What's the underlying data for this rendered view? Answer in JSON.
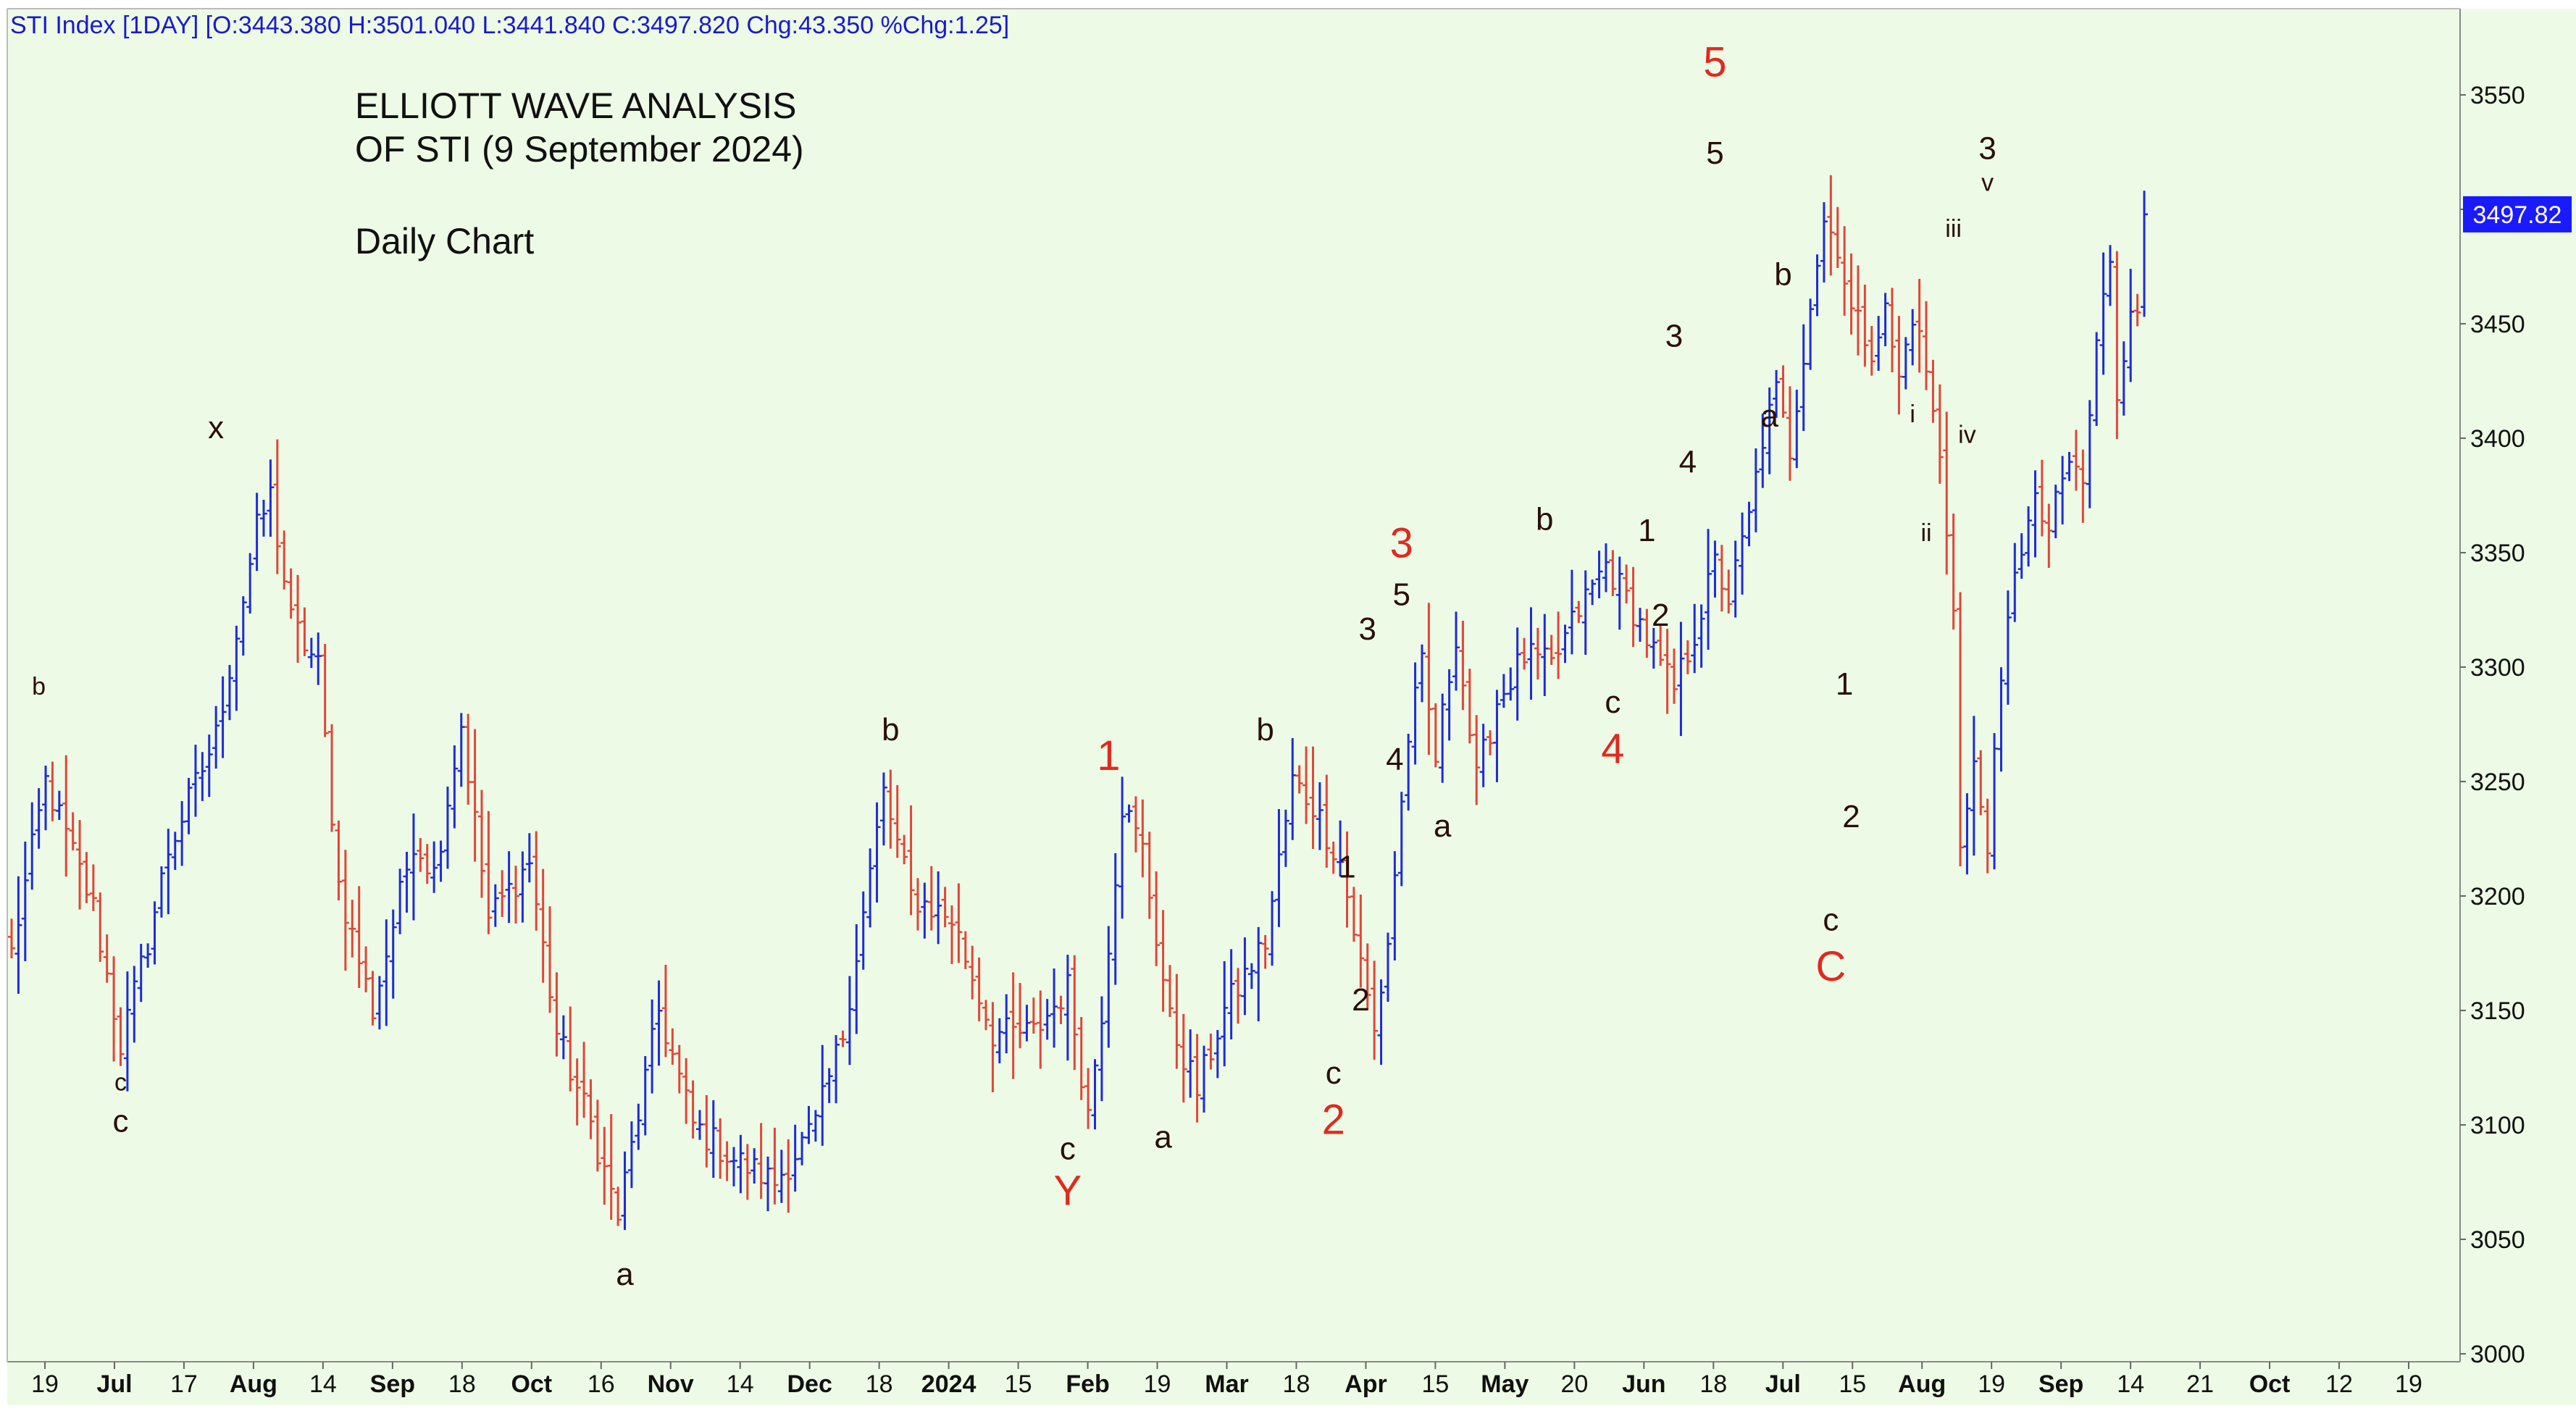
{
  "header": {
    "ticker_line": "STI Index [1DAY] [O:3443.380 H:3501.040 L:3441.840 C:3497.820 Chg:43.350 %Chg:1.25]"
  },
  "overlay": {
    "title_line1": "ELLIOTT WAVE ANALYSIS",
    "title_line2": "OF STI (9 September 2024)",
    "subtitle": "Daily Chart"
  },
  "price_tag": {
    "value": "3497.82",
    "color": "#1a1aff"
  },
  "colors": {
    "background": "#edfbe6",
    "up_bar": "#1f2bd6",
    "down_bar": "#e0463a",
    "label_dark": "#2a0f08",
    "label_red": "#e02a1f",
    "axis_text": "#111111",
    "header_text": "#1a1acc"
  },
  "chart_data": {
    "type": "ohlc",
    "y_axis": {
      "min": 3000,
      "max": 3560,
      "ticks": [
        3000,
        3050,
        3100,
        3150,
        3200,
        3250,
        3300,
        3350,
        3400,
        3450,
        3500,
        3550
      ],
      "side": "right"
    },
    "x_axis": {
      "labels": [
        {
          "text": "19",
          "bold": false
        },
        {
          "text": "Jul",
          "bold": true
        },
        {
          "text": "17",
          "bold": false
        },
        {
          "text": "Aug",
          "bold": true
        },
        {
          "text": "14",
          "bold": false
        },
        {
          "text": "Sep",
          "bold": true
        },
        {
          "text": "18",
          "bold": false
        },
        {
          "text": "Oct",
          "bold": true
        },
        {
          "text": "16",
          "bold": false
        },
        {
          "text": "Nov",
          "bold": true
        },
        {
          "text": "14",
          "bold": false
        },
        {
          "text": "Dec",
          "bold": true
        },
        {
          "text": "18",
          "bold": false
        },
        {
          "text": "2024",
          "bold": true
        },
        {
          "text": "15",
          "bold": false
        },
        {
          "text": "Feb",
          "bold": true
        },
        {
          "text": "19",
          "bold": false
        },
        {
          "text": "Mar",
          "bold": true
        },
        {
          "text": "18",
          "bold": false
        },
        {
          "text": "Apr",
          "bold": true
        },
        {
          "text": "15",
          "bold": false
        },
        {
          "text": "May",
          "bold": true
        },
        {
          "text": "20",
          "bold": false
        },
        {
          "text": "Jun",
          "bold": true
        },
        {
          "text": "18",
          "bold": false
        },
        {
          "text": "Jul",
          "bold": true
        },
        {
          "text": "15",
          "bold": false
        },
        {
          "text": "Aug",
          "bold": true
        },
        {
          "text": "19",
          "bold": false
        },
        {
          "text": "Sep",
          "bold": true
        },
        {
          "text": "14",
          "bold": false
        },
        {
          "text": "21",
          "bold": false
        },
        {
          "text": "Oct",
          "bold": true
        },
        {
          "text": "12",
          "bold": false
        },
        {
          "text": "19",
          "bold": false
        }
      ]
    },
    "anchors": [
      {
        "i": 0,
        "p": 3175
      },
      {
        "i": 5,
        "p": 3250
      },
      {
        "i": 12,
        "p": 3195
      },
      {
        "i": 16,
        "p": 3135
      },
      {
        "i": 20,
        "p": 3180
      },
      {
        "i": 23,
        "p": 3220
      },
      {
        "i": 30,
        "p": 3270
      },
      {
        "i": 36,
        "p": 3360
      },
      {
        "i": 38,
        "p": 3375
      },
      {
        "i": 41,
        "p": 3320
      },
      {
        "i": 45,
        "p": 3300
      },
      {
        "i": 48,
        "p": 3205
      },
      {
        "i": 53,
        "p": 3150
      },
      {
        "i": 59,
        "p": 3225
      },
      {
        "i": 62,
        "p": 3210
      },
      {
        "i": 66,
        "p": 3275
      },
      {
        "i": 70,
        "p": 3190
      },
      {
        "i": 76,
        "p": 3215
      },
      {
        "i": 80,
        "p": 3140
      },
      {
        "i": 85,
        "p": 3100
      },
      {
        "i": 89,
        "p": 3060
      },
      {
        "i": 95,
        "p": 3150
      },
      {
        "i": 100,
        "p": 3100
      },
      {
        "i": 106,
        "p": 3085
      },
      {
        "i": 112,
        "p": 3075
      },
      {
        "i": 118,
        "p": 3100
      },
      {
        "i": 122,
        "p": 3140
      },
      {
        "i": 128,
        "p": 3245
      },
      {
        "i": 132,
        "p": 3200
      },
      {
        "i": 138,
        "p": 3190
      },
      {
        "i": 144,
        "p": 3140
      },
      {
        "i": 150,
        "p": 3140
      },
      {
        "i": 155,
        "p": 3160
      },
      {
        "i": 158,
        "p": 3105
      },
      {
        "i": 160,
        "p": 3150
      },
      {
        "i": 163,
        "p": 3240
      },
      {
        "i": 166,
        "p": 3220
      },
      {
        "i": 170,
        "p": 3145
      },
      {
        "i": 174,
        "p": 3115
      },
      {
        "i": 178,
        "p": 3150
      },
      {
        "i": 184,
        "p": 3180
      },
      {
        "i": 188,
        "p": 3250
      },
      {
        "i": 191,
        "p": 3240
      },
      {
        "i": 195,
        "p": 3215
      },
      {
        "i": 198,
        "p": 3170
      },
      {
        "i": 200,
        "p": 3140
      },
      {
        "i": 202,
        "p": 3180
      },
      {
        "i": 205,
        "p": 3270
      },
      {
        "i": 207,
        "p": 3300
      },
      {
        "i": 209,
        "p": 3260
      },
      {
        "i": 212,
        "p": 3315
      },
      {
        "i": 215,
        "p": 3250
      },
      {
        "i": 218,
        "p": 3285
      },
      {
        "i": 222,
        "p": 3305
      },
      {
        "i": 226,
        "p": 3300
      },
      {
        "i": 230,
        "p": 3325
      },
      {
        "i": 234,
        "p": 3345
      },
      {
        "i": 238,
        "p": 3325
      },
      {
        "i": 242,
        "p": 3300
      },
      {
        "i": 244,
        "p": 3290
      },
      {
        "i": 247,
        "p": 3315
      },
      {
        "i": 250,
        "p": 3345
      },
      {
        "i": 252,
        "p": 3330
      },
      {
        "i": 255,
        "p": 3365
      },
      {
        "i": 257,
        "p": 3400
      },
      {
        "i": 259,
        "p": 3420
      },
      {
        "i": 261,
        "p": 3395
      },
      {
        "i": 264,
        "p": 3460
      },
      {
        "i": 266,
        "p": 3495
      },
      {
        "i": 268,
        "p": 3485
      },
      {
        "i": 270,
        "p": 3455
      },
      {
        "i": 273,
        "p": 3440
      },
      {
        "i": 275,
        "p": 3455
      },
      {
        "i": 277,
        "p": 3425
      },
      {
        "i": 279,
        "p": 3455
      },
      {
        "i": 281,
        "p": 3430
      },
      {
        "i": 283,
        "p": 3390
      },
      {
        "i": 285,
        "p": 3330
      },
      {
        "i": 286,
        "p": 3220
      },
      {
        "i": 288,
        "p": 3255
      },
      {
        "i": 290,
        "p": 3225
      },
      {
        "i": 292,
        "p": 3290
      },
      {
        "i": 294,
        "p": 3345
      },
      {
        "i": 297,
        "p": 3370
      },
      {
        "i": 299,
        "p": 3360
      },
      {
        "i": 302,
        "p": 3390
      },
      {
        "i": 304,
        "p": 3380
      },
      {
        "i": 306,
        "p": 3440
      },
      {
        "i": 308,
        "p": 3480
      },
      {
        "i": 309,
        "p": 3420
      },
      {
        "i": 311,
        "p": 3460
      },
      {
        "i": 312,
        "p": 3450
      },
      {
        "i": 313,
        "p": 3497.82
      }
    ],
    "bar_count": 314,
    "wave_labels": [
      {
        "t": "b",
        "i": 4,
        "p": 3288,
        "c": "dark",
        "s": "small"
      },
      {
        "t": "c",
        "i": 16,
        "p": 3115,
        "c": "dark",
        "s": "small"
      },
      {
        "t": "c",
        "i": 16,
        "p": 3097,
        "c": "dark",
        "s": "med"
      },
      {
        "t": "x",
        "i": 30,
        "p": 3400,
        "c": "dark",
        "s": "med"
      },
      {
        "t": "a",
        "i": 90,
        "p": 3030,
        "c": "dark",
        "s": "med"
      },
      {
        "t": "b",
        "i": 129,
        "p": 3268,
        "c": "dark",
        "s": "med"
      },
      {
        "t": "c",
        "i": 155,
        "p": 3085,
        "c": "dark",
        "s": "med"
      },
      {
        "t": "Y",
        "i": 155,
        "p": 3065,
        "c": "red",
        "s": "big"
      },
      {
        "t": "1",
        "i": 161,
        "p": 3255,
        "c": "red",
        "s": "big"
      },
      {
        "t": "a",
        "i": 169,
        "p": 3090,
        "c": "dark",
        "s": "med"
      },
      {
        "t": "b",
        "i": 184,
        "p": 3268,
        "c": "dark",
        "s": "med"
      },
      {
        "t": "c",
        "i": 194,
        "p": 3118,
        "c": "dark",
        "s": "med"
      },
      {
        "t": "2",
        "i": 194,
        "p": 3096,
        "c": "red",
        "s": "big"
      },
      {
        "t": "1",
        "i": 196,
        "p": 3208,
        "c": "dark",
        "s": "med"
      },
      {
        "t": "2",
        "i": 198,
        "p": 3150,
        "c": "dark",
        "s": "med"
      },
      {
        "t": "3",
        "i": 199,
        "p": 3312,
        "c": "dark",
        "s": "med"
      },
      {
        "t": "4",
        "i": 203,
        "p": 3255,
        "c": "dark",
        "s": "med"
      },
      {
        "t": "3",
        "i": 204,
        "p": 3348,
        "c": "red",
        "s": "big"
      },
      {
        "t": "5",
        "i": 204,
        "p": 3327,
        "c": "dark",
        "s": "med"
      },
      {
        "t": "a",
        "i": 210,
        "p": 3226,
        "c": "dark",
        "s": "med"
      },
      {
        "t": "b",
        "i": 225,
        "p": 3360,
        "c": "dark",
        "s": "med"
      },
      {
        "t": "c",
        "i": 235,
        "p": 3280,
        "c": "dark",
        "s": "med"
      },
      {
        "t": "4",
        "i": 235,
        "p": 3258,
        "c": "red",
        "s": "big"
      },
      {
        "t": "1",
        "i": 240,
        "p": 3355,
        "c": "dark",
        "s": "med"
      },
      {
        "t": "2",
        "i": 242,
        "p": 3318,
        "c": "dark",
        "s": "med"
      },
      {
        "t": "3",
        "i": 244,
        "p": 3440,
        "c": "dark",
        "s": "med"
      },
      {
        "t": "4",
        "i": 246,
        "p": 3385,
        "c": "dark",
        "s": "med"
      },
      {
        "t": "5",
        "i": 250,
        "p": 3558,
        "c": "red",
        "s": "big"
      },
      {
        "t": "5",
        "i": 250,
        "p": 3520,
        "c": "dark",
        "s": "med"
      },
      {
        "t": "b",
        "i": 260,
        "p": 3467,
        "c": "dark",
        "s": "med"
      },
      {
        "t": "a",
        "i": 258,
        "p": 3405,
        "c": "dark",
        "s": "med"
      },
      {
        "t": "c",
        "i": 267,
        "p": 3185,
        "c": "dark",
        "s": "med"
      },
      {
        "t": "C",
        "i": 267,
        "p": 3163,
        "c": "red",
        "s": "big"
      },
      {
        "t": "1",
        "i": 269,
        "p": 3288,
        "c": "dark",
        "s": "med"
      },
      {
        "t": "2",
        "i": 270,
        "p": 3230,
        "c": "dark",
        "s": "med"
      },
      {
        "t": "i",
        "i": 279,
        "p": 3407,
        "c": "dark",
        "s": "small"
      },
      {
        "t": "ii",
        "i": 281,
        "p": 3355,
        "c": "dark",
        "s": "small"
      },
      {
        "t": "iii",
        "i": 285,
        "p": 3488,
        "c": "dark",
        "s": "small"
      },
      {
        "t": "iv",
        "i": 287,
        "p": 3398,
        "c": "dark",
        "s": "small"
      },
      {
        "t": "3",
        "i": 290,
        "p": 3522,
        "c": "dark",
        "s": "med"
      },
      {
        "t": "v",
        "i": 290,
        "p": 3508,
        "c": "dark",
        "s": "small"
      }
    ]
  }
}
